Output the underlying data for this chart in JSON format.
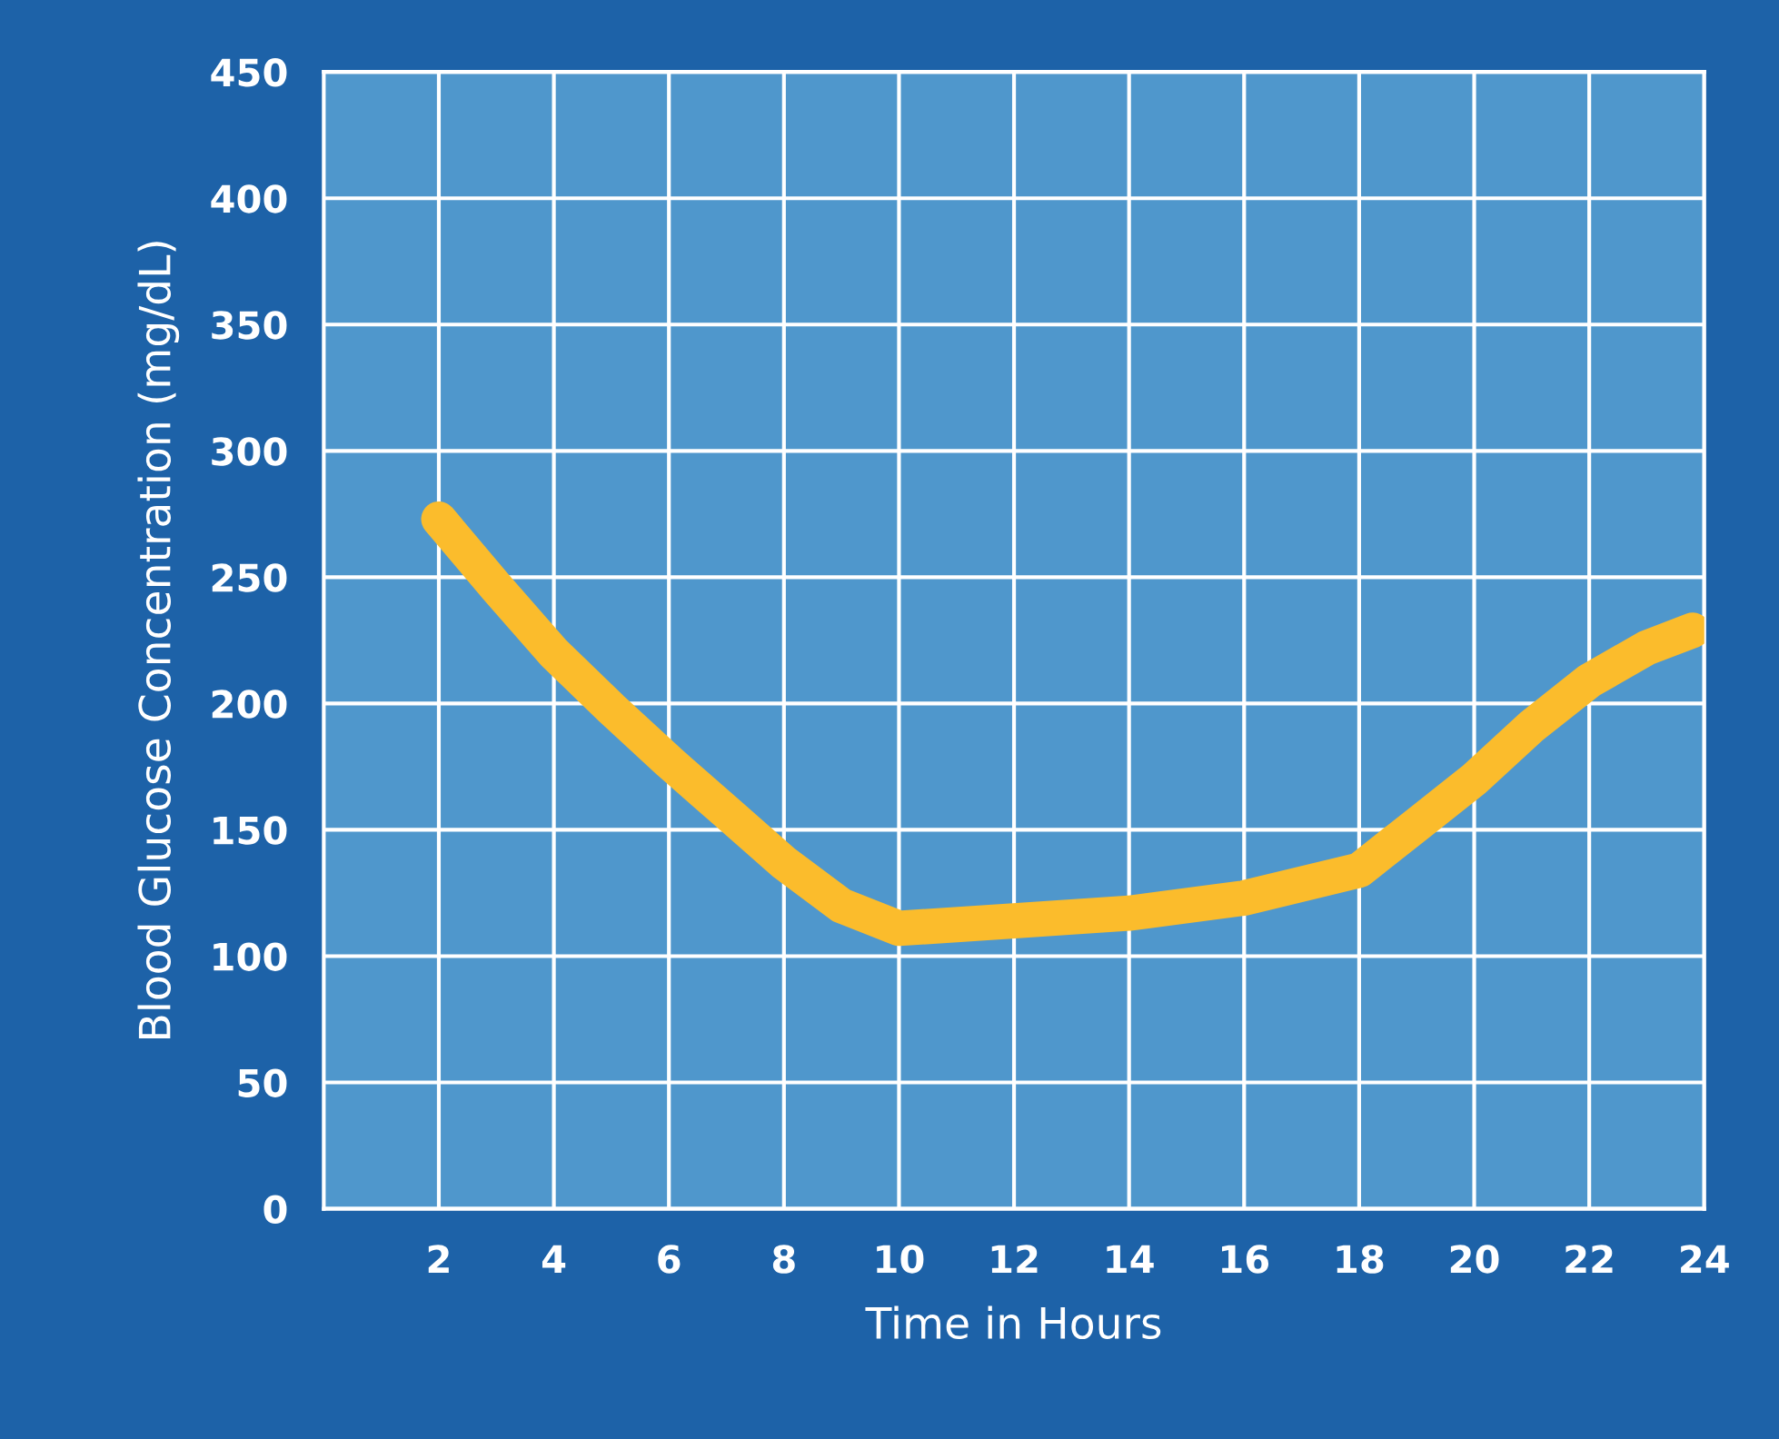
{
  "chart_data": {
    "type": "line",
    "xlabel": "Time in Hours",
    "ylabel": "Blood Glucose Concentration (mg/dL)",
    "x": [
      2,
      3,
      4,
      5,
      6,
      7,
      8,
      9,
      10,
      12,
      14,
      16,
      18,
      19,
      20,
      21,
      22,
      23,
      23.8
    ],
    "series": [
      {
        "color": "#fbbc2c",
        "values": [
          273,
          246,
          220,
          198,
          177,
          157,
          137,
          120,
          111,
          114,
          117,
          123,
          134,
          152,
          170,
          191,
          209,
          222,
          229
        ]
      }
    ],
    "xlim": [
      0,
      24
    ],
    "xticks": [
      2,
      4,
      6,
      8,
      10,
      12,
      14,
      16,
      18,
      20,
      22,
      24
    ],
    "ylim": [
      0,
      450
    ],
    "yticks": [
      0,
      50,
      100,
      150,
      200,
      250,
      300,
      350,
      400,
      450
    ],
    "grid": true,
    "line_style": "solid"
  }
}
